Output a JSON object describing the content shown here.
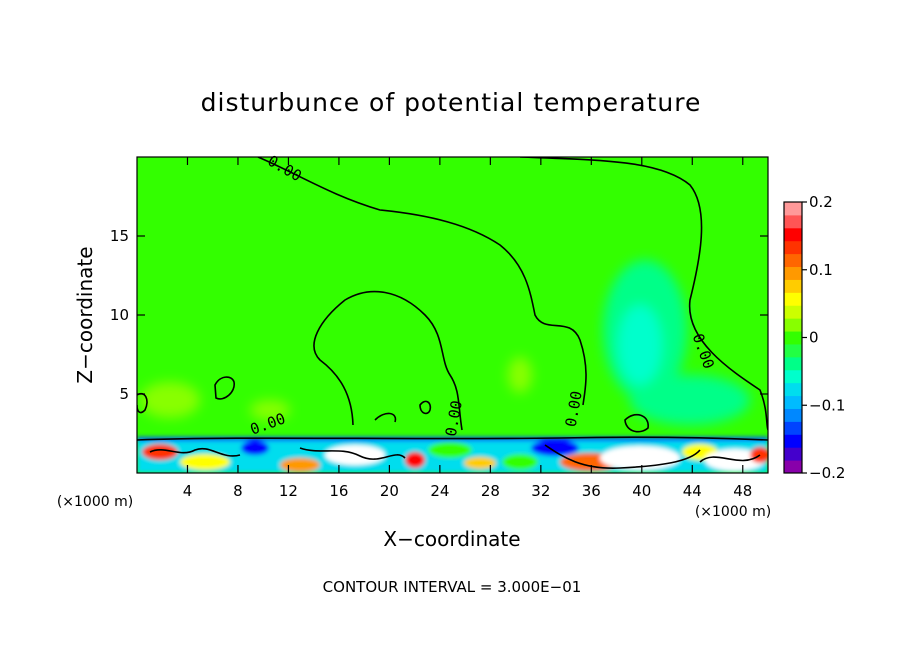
{
  "chart_data": {
    "type": "heatmap",
    "title": "disturbunce of potential temperature",
    "xlabel": "X−coordinate",
    "ylabel": "Z−coordinate",
    "x_unit": "(×1000 m)",
    "x_unit_right": "(×1000 m)",
    "xlim": [
      0,
      50
    ],
    "ylim": [
      0,
      20
    ],
    "x_ticks": [
      4,
      8,
      12,
      16,
      20,
      24,
      28,
      32,
      36,
      40,
      44,
      48
    ],
    "y_ticks": [
      5,
      10,
      15
    ],
    "colorbar": {
      "range": [
        -0.2,
        0.2
      ],
      "ticks": [
        "0.2",
        "0.1",
        "0",
        "−0.1",
        "−0.2"
      ],
      "tick_values": [
        0.2,
        0.1,
        0,
        -0.1,
        -0.2
      ],
      "colors": [
        "#8800aa",
        "#4400cc",
        "#0000ff",
        "#0044ff",
        "#0088ff",
        "#00bbff",
        "#00ddee",
        "#00ffcc",
        "#00ff88",
        "#22ff44",
        "#33ff00",
        "#88ff00",
        "#ccff00",
        "#ffff00",
        "#ffcc00",
        "#ff9900",
        "#ff6600",
        "#ff3300",
        "#ff0000",
        "#ff5555",
        "#ff9999"
      ]
    },
    "contour_labels": [
      {
        "text": "0.00",
        "x": 11.5,
        "z": 19.0
      },
      {
        "text": "0.00",
        "x": 10.5,
        "z": 2.8
      },
      {
        "text": "0.00",
        "x": 25.5,
        "z": 3.4
      },
      {
        "text": "0.00",
        "x": 35.0,
        "z": 4.0
      },
      {
        "text": "0.00",
        "x": 44.5,
        "z": 7.6
      }
    ],
    "grid": false,
    "legend": "right"
  },
  "footer": "CONTOUR INTERVAL =  3.000E−01"
}
